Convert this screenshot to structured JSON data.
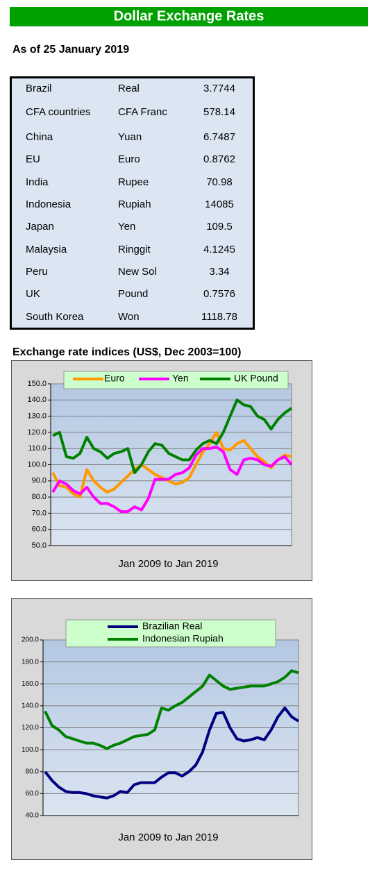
{
  "header": {
    "title": "Dollar Exchange Rates",
    "date": "As of 25 January 2019"
  },
  "table": {
    "rows": [
      [
        "Brazil",
        "Real",
        3.7744
      ],
      [
        "CFA countries",
        "CFA Franc",
        578.14
      ],
      [
        "China",
        "Yuan",
        6.7487
      ],
      [
        "EU",
        "Euro",
        0.8762
      ],
      [
        "India",
        "Rupee",
        70.98
      ],
      [
        "Indonesia",
        "Rupiah",
        14085
      ],
      [
        "Japan",
        "Yen",
        109.5
      ],
      [
        "Malaysia",
        "Ringgit",
        4.1245
      ],
      [
        "Peru",
        "New Sol",
        3.34
      ],
      [
        "UK",
        "Pound",
        0.7576
      ],
      [
        "South Korea",
        "Won",
        1118.78
      ]
    ]
  },
  "chart_data": [
    {
      "type": "line",
      "title": "Exchange rate indices (US$, Dec 2003=100)",
      "xlabel": "Jan 2009  to Jan 2019",
      "ylim": [
        50,
        150
      ],
      "yticks": [
        {
          "value": 50,
          "label": "50.0"
        },
        {
          "value": 60,
          "label": "60.0"
        },
        {
          "value": 70,
          "label": "70.0"
        },
        {
          "value": 80,
          "label": "80.0"
        },
        {
          "value": 90,
          "label": "90.0"
        },
        {
          "value": 100,
          "label": "100.0"
        },
        {
          "value": 110,
          "label": "110.0"
        },
        {
          "value": 120,
          "label": "120.0"
        },
        {
          "value": 130,
          "label": "130.0"
        },
        {
          "value": 140,
          "label": "140.0"
        },
        {
          "value": 150,
          "label": "150.0"
        }
      ],
      "grid": true,
      "series": [
        {
          "name": "Euro",
          "color": "#ff9900",
          "values": [
            95,
            87,
            86,
            82,
            80,
            97,
            90,
            86,
            83,
            85,
            89,
            93,
            97,
            100,
            97,
            94,
            92,
            90,
            88,
            89,
            92,
            100,
            108,
            113,
            120,
            110,
            109,
            113,
            115,
            110,
            105,
            102,
            98,
            103,
            106,
            105
          ]
        },
        {
          "name": "Yen",
          "color": "#ff00ff",
          "values": [
            83,
            90,
            88,
            84,
            82,
            86,
            80,
            76,
            76,
            74,
            71,
            71,
            74,
            72,
            79,
            91,
            91,
            91,
            94,
            95,
            98,
            106,
            110,
            110,
            111,
            108,
            97,
            94,
            103,
            104,
            103,
            100,
            99,
            103,
            105,
            100
          ]
        },
        {
          "name": "UK Pound",
          "color": "#008000",
          "values": [
            118,
            120,
            105,
            104,
            107,
            117,
            110,
            108,
            104,
            107,
            108,
            110,
            95,
            100,
            108,
            113,
            112,
            107,
            105,
            103,
            103,
            109,
            113,
            115,
            113,
            120,
            130,
            140,
            137,
            136,
            130,
            128,
            122,
            128,
            132,
            135
          ]
        }
      ]
    },
    {
      "type": "line",
      "xlabel": "Jan 2009  to Jan 2019",
      "ylim": [
        40,
        200
      ],
      "yticks": [
        {
          "value": 40,
          "label": "40.0"
        },
        {
          "value": 60,
          "label": "60.0"
        },
        {
          "value": 80,
          "label": "80.0"
        },
        {
          "value": 100,
          "label": "100.0"
        },
        {
          "value": 120,
          "label": "120.0"
        },
        {
          "value": 140,
          "label": "140.0"
        },
        {
          "value": 160,
          "label": "160.0"
        },
        {
          "value": 180,
          "label": "180.0"
        },
        {
          "value": 200,
          "label": "200.0"
        }
      ],
      "grid": true,
      "series": [
        {
          "name": "Brazilian Real",
          "color": "#000080",
          "values": [
            80,
            72,
            66,
            62,
            61,
            61,
            60,
            58,
            57,
            56,
            58,
            62,
            61,
            68,
            70,
            70,
            70,
            75,
            79,
            79,
            76,
            80,
            86,
            98,
            118,
            133,
            134,
            120,
            110,
            108,
            109,
            111,
            109,
            118,
            130,
            138,
            130,
            126
          ]
        },
        {
          "name": "Indonesian Rupiah",
          "color": "#008000",
          "values": [
            135,
            122,
            118,
            112,
            110,
            108,
            106,
            106,
            104,
            101,
            104,
            106,
            109,
            112,
            113,
            114,
            118,
            138,
            136,
            140,
            143,
            148,
            153,
            158,
            168,
            163,
            158,
            155,
            156,
            157,
            158,
            158,
            158,
            160,
            162,
            166,
            172,
            170
          ]
        }
      ]
    }
  ]
}
